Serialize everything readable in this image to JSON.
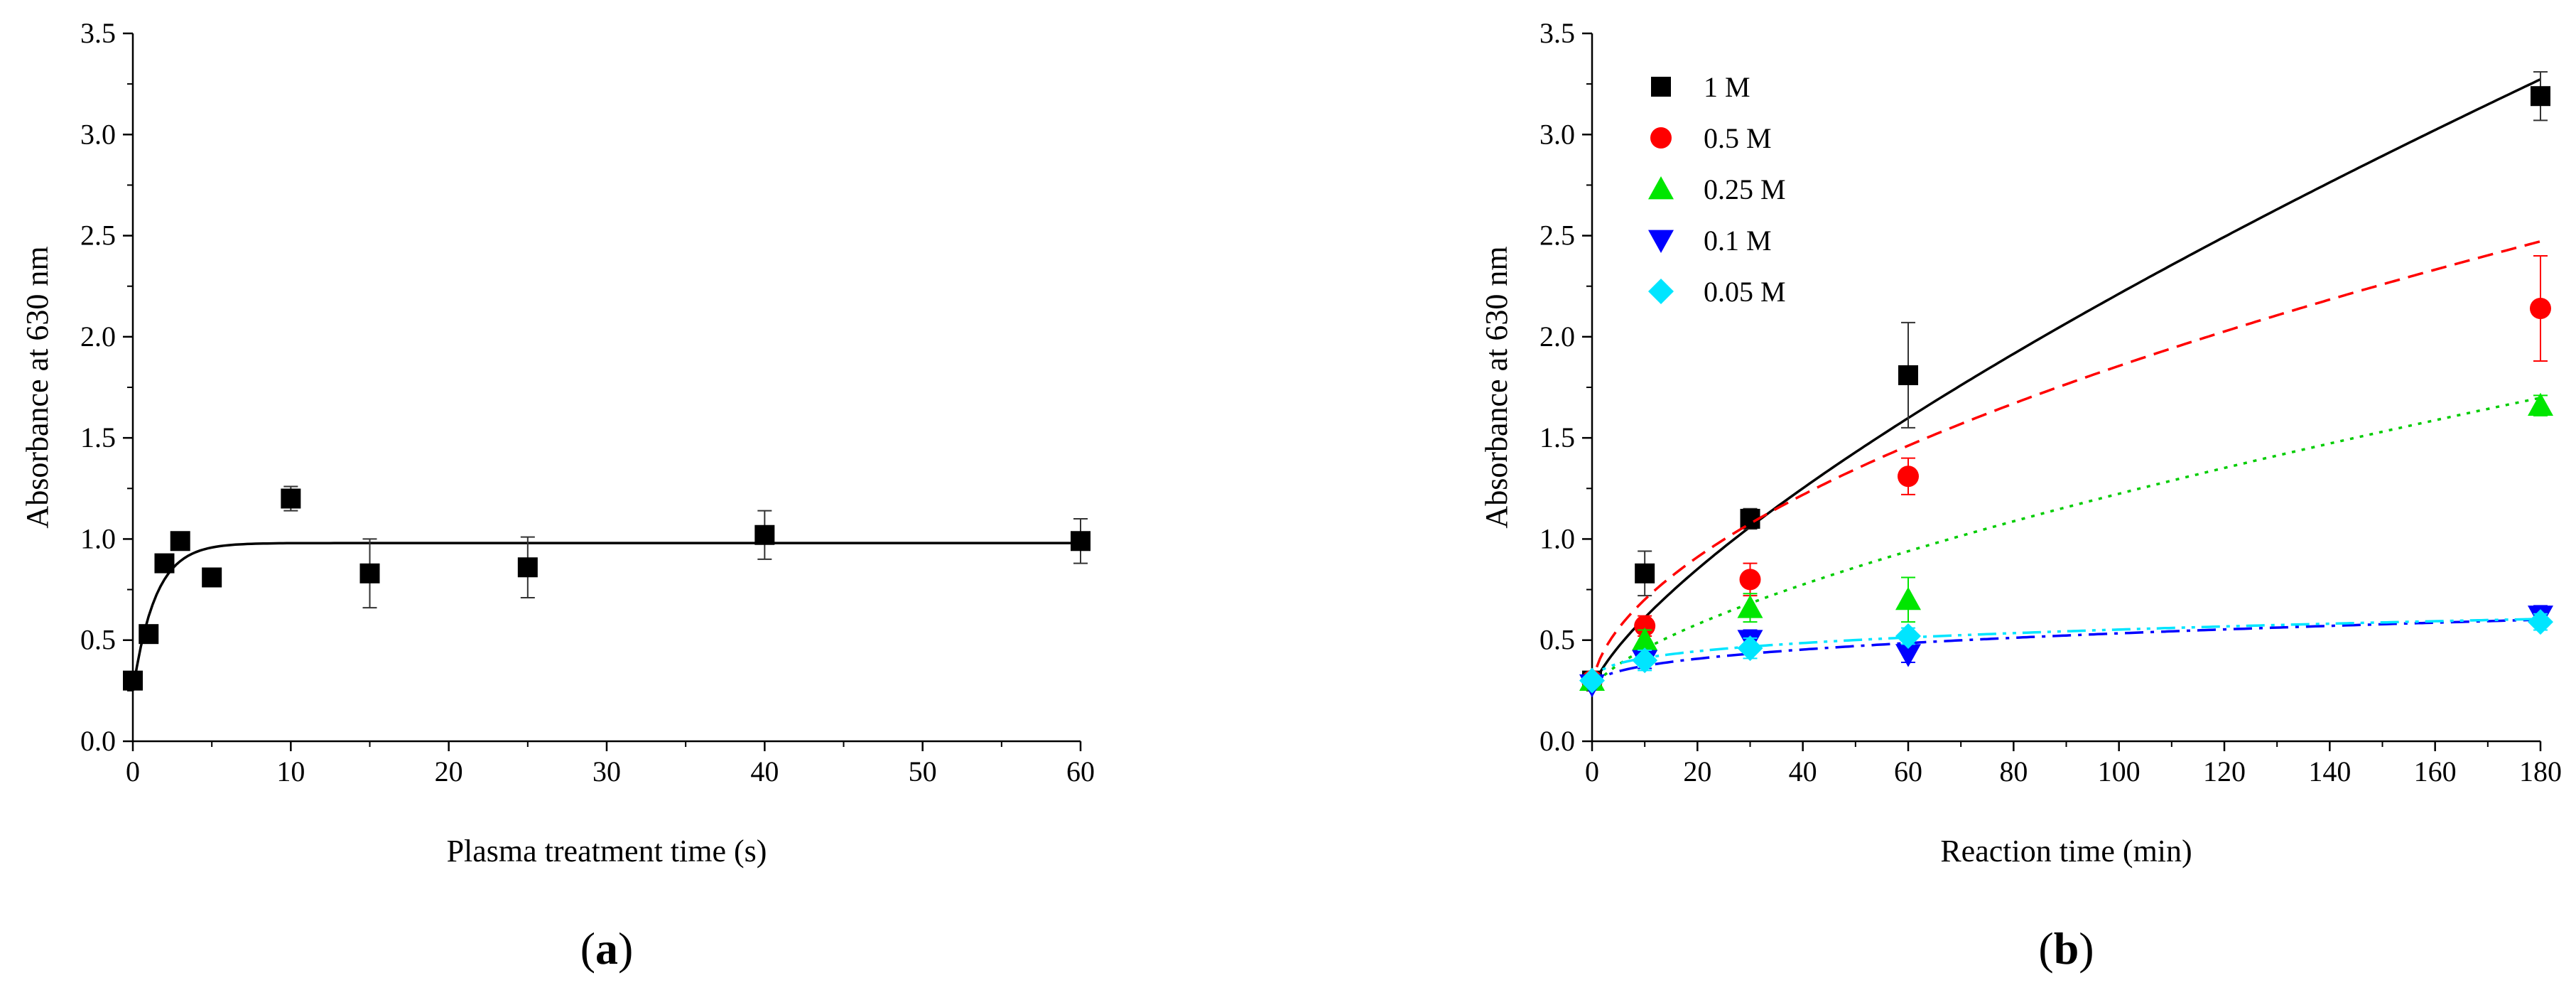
{
  "chart_data": [
    {
      "type": "scatter",
      "panel_label": "a",
      "xlabel": "Plasma treatment time (s)",
      "ylabel": "Absorbance at 630 nm",
      "xlim": [
        0,
        60
      ],
      "ylim": [
        0,
        3.5
      ],
      "xticks": [
        0,
        10,
        20,
        30,
        40,
        50,
        60
      ],
      "yticks": [
        0.0,
        0.5,
        1.0,
        1.5,
        2.0,
        2.5,
        3.0,
        3.5
      ],
      "xtick_labels": [
        "0",
        "10",
        "20",
        "30",
        "40",
        "50",
        "60"
      ],
      "ytick_labels": [
        "0.0",
        "0.5",
        "1.0",
        "1.5",
        "2.0",
        "2.5",
        "3.0",
        "3.5"
      ],
      "grid": false,
      "legend": false,
      "series": [
        {
          "marker": "square",
          "color": "#000000",
          "x": [
            0,
            1,
            2,
            3,
            5,
            10,
            15,
            25,
            40,
            60
          ],
          "y": [
            0.3,
            0.53,
            0.88,
            0.99,
            0.81,
            1.2,
            0.83,
            0.86,
            1.02,
            0.99
          ],
          "error": [
            0.0,
            0.0,
            0.0,
            0.0,
            0.0,
            0.06,
            0.17,
            0.15,
            0.12,
            0.11
          ],
          "fit": {
            "kind": "exp_rise",
            "y0": 0.25,
            "plateau": 0.98,
            "rate": 0.7,
            "color": "#000000",
            "dash": "solid"
          }
        }
      ]
    },
    {
      "type": "scatter",
      "panel_label": "b",
      "xlabel": "Reaction time (min)",
      "ylabel": "Absorbance at 630 nm",
      "xlim": [
        0,
        180
      ],
      "ylim": [
        0,
        3.5
      ],
      "xticks": [
        0,
        20,
        40,
        60,
        80,
        100,
        120,
        140,
        160,
        180
      ],
      "yticks": [
        0.0,
        0.5,
        1.0,
        1.5,
        2.0,
        2.5,
        3.0,
        3.5
      ],
      "xtick_labels": [
        "0",
        "20",
        "40",
        "60",
        "80",
        "100",
        "120",
        "140",
        "160",
        "180"
      ],
      "ytick_labels": [
        "0.0",
        "0.5",
        "1.0",
        "1.5",
        "2.0",
        "2.5",
        "3.0",
        "3.5"
      ],
      "grid": false,
      "legend": true,
      "legend_position": "top-left",
      "series": [
        {
          "name": "1 M",
          "marker": "square",
          "color": "#000000",
          "x": [
            0,
            10,
            30,
            60,
            180
          ],
          "y": [
            0.3,
            0.83,
            1.1,
            1.81,
            3.19
          ],
          "error": [
            0.0,
            0.11,
            0.05,
            0.26,
            0.12
          ],
          "fit": {
            "kind": "power",
            "a": 0.25,
            "b": 0.0665,
            "c": 0.735,
            "color": "#000000",
            "dash": "solid"
          }
        },
        {
          "name": "0.5 M",
          "marker": "circle",
          "color": "#ff0000",
          "x": [
            0,
            10,
            30,
            60,
            180
          ],
          "y": [
            0.3,
            0.57,
            0.8,
            1.31,
            2.14
          ],
          "error": [
            0.0,
            0.05,
            0.08,
            0.09,
            0.26
          ],
          "fit": {
            "kind": "power",
            "a": 0.25,
            "b": 0.1264,
            "c": 0.552,
            "color": "#ff0000",
            "dash": "dashed"
          }
        },
        {
          "name": "0.25 M",
          "marker": "triangle-up",
          "color": "#00e600",
          "x": [
            0,
            10,
            30,
            60,
            180
          ],
          "y": [
            0.3,
            0.5,
            0.66,
            0.7,
            1.66
          ],
          "error": [
            0.0,
            0.05,
            0.07,
            0.11,
            0.05
          ],
          "fit": {
            "kind": "power",
            "a": 0.25,
            "b": 0.0435,
            "c": 0.675,
            "color": "#00cc00",
            "dash": "dotted"
          }
        },
        {
          "name": "0.1 M",
          "marker": "triangle-down",
          "color": "#0000ff",
          "x": [
            0,
            10,
            30,
            60,
            180
          ],
          "y": [
            0.28,
            0.4,
            0.5,
            0.43,
            0.62
          ],
          "error": [
            0.0,
            0.04,
            0.05,
            0.04,
            0.05
          ],
          "fit": {
            "kind": "power",
            "a": 0.25,
            "b": 0.0533,
            "c": 0.363,
            "color": "#0000ff",
            "dash": "dashdot"
          }
        },
        {
          "name": "0.05 M",
          "marker": "diamond",
          "color": "#00e5ff",
          "x": [
            0,
            10,
            30,
            60,
            180
          ],
          "y": [
            0.3,
            0.4,
            0.46,
            0.52,
            0.59
          ],
          "error": [
            0.0,
            0.05,
            0.05,
            0.04,
            0.04
          ],
          "fit": {
            "kind": "power",
            "a": 0.25,
            "b": 0.0864,
            "c": 0.272,
            "color": "#00e5ff",
            "dash": "dashdotdot"
          }
        }
      ]
    }
  ]
}
